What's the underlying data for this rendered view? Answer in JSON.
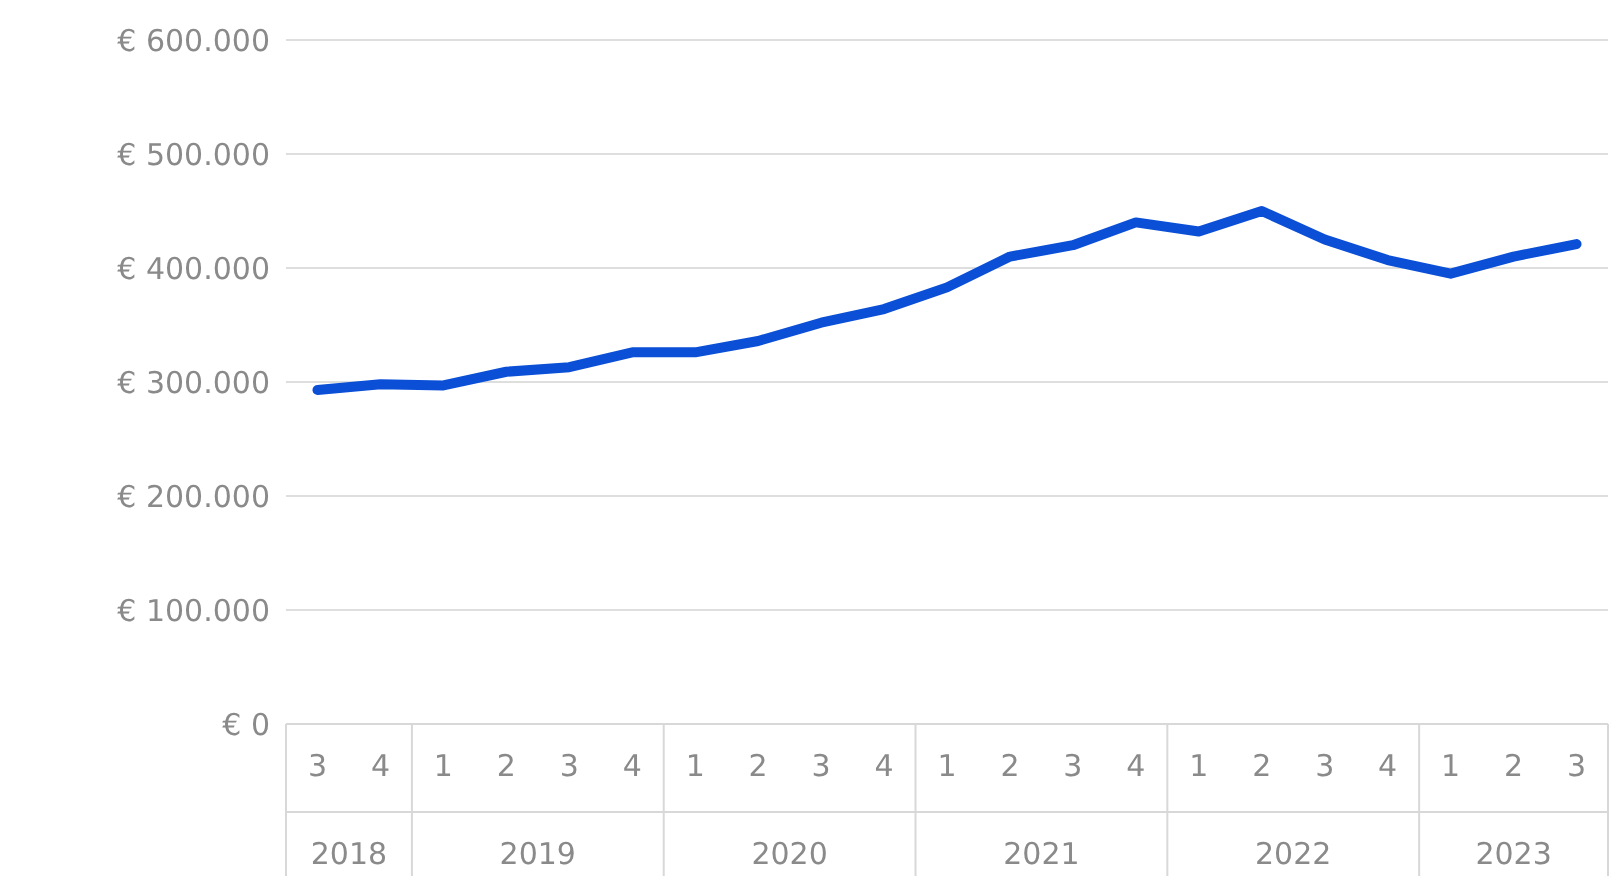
{
  "chart_data": {
    "type": "line",
    "categories": [
      "3",
      "4",
      "1",
      "2",
      "3",
      "4",
      "1",
      "2",
      "3",
      "4",
      "1",
      "2",
      "3",
      "4",
      "1",
      "2",
      "3",
      "4",
      "1",
      "2",
      "3"
    ],
    "series": [
      {
        "color": "#0a4fd6",
        "values": [
          293000,
          298000,
          297000,
          309000,
          313000,
          326000,
          326000,
          336000,
          352000,
          364000,
          383000,
          410000,
          420000,
          440000,
          432000,
          450000,
          425000,
          407000,
          395000,
          410000,
          421000
        ]
      }
    ],
    "annotations": [
      "2018",
      "2019",
      "2020",
      "2021",
      "2022",
      "2023"
    ],
    "ylim": [
      0,
      600000
    ],
    "yticks": [
      {
        "value": 0,
        "label": "€ 0"
      },
      {
        "value": 100000,
        "label": "€ 100.000"
      },
      {
        "value": 200000,
        "label": "€ 200.000"
      },
      {
        "value": 300000,
        "label": "€ 300.000"
      },
      {
        "value": 400000,
        "label": "€ 400.000"
      },
      {
        "value": 500000,
        "label": "€ 500.000"
      },
      {
        "value": 600000,
        "label": "€ 600.000"
      }
    ],
    "grid": "y",
    "legend": false,
    "marker": "none",
    "line_style": "solid"
  }
}
